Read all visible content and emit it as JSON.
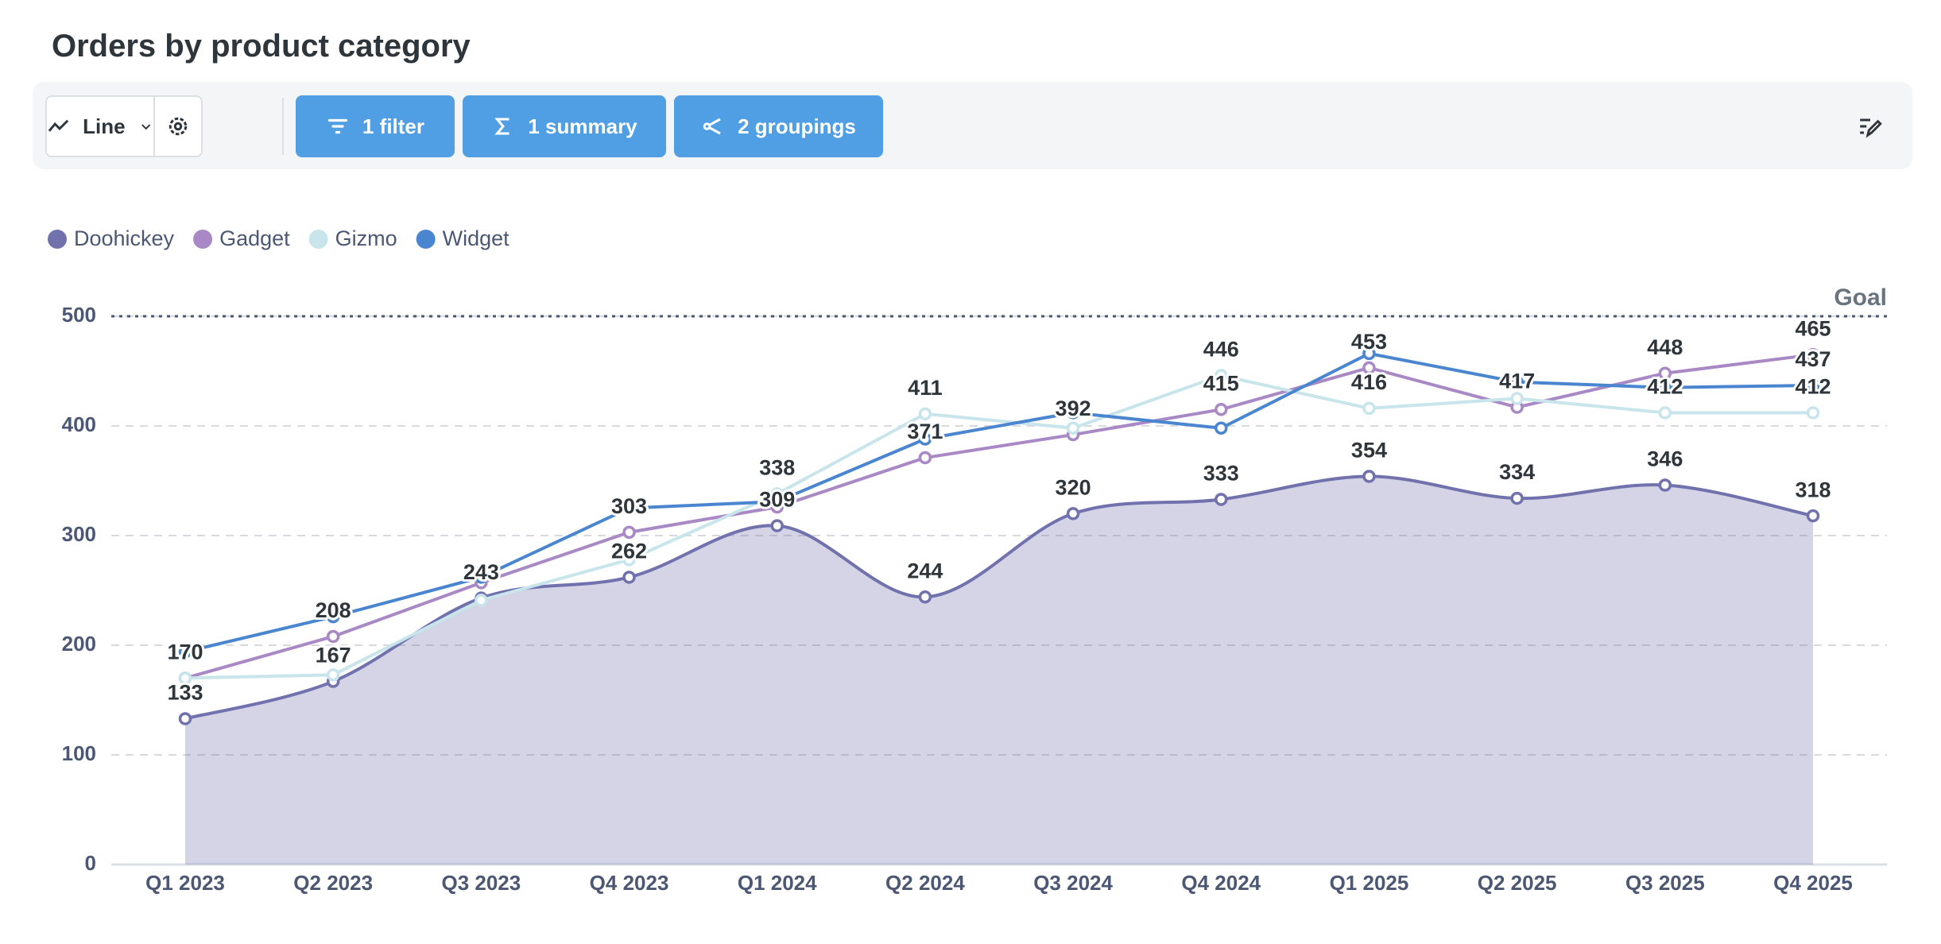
{
  "toolbar": {
    "display": "Line",
    "filter": "1 filter",
    "summary": "1 summary",
    "groupings": "2 groupings"
  },
  "chart_data": {
    "type": "line",
    "title": "Orders by product category",
    "categories": [
      "Q1 2023",
      "Q2 2023",
      "Q3 2023",
      "Q4 2023",
      "Q1 2024",
      "Q2 2024",
      "Q3 2024",
      "Q4 2024",
      "Q1 2025",
      "Q2 2025",
      "Q3 2025",
      "Q4 2025"
    ],
    "series": [
      {
        "name": "Doohickey",
        "color": "#7172ad",
        "area": true,
        "smooth": true,
        "values": [
          133,
          167,
          243,
          262,
          309,
          244,
          320,
          333,
          354,
          334,
          346,
          318
        ],
        "value_labels": [
          "133",
          "167",
          "243",
          "262",
          "309",
          "244",
          "320",
          "333",
          "354",
          "334",
          "346",
          "318"
        ]
      },
      {
        "name": "Gadget",
        "color": "#a989c5",
        "values": [
          170,
          208,
          257,
          303,
          326,
          371,
          392,
          415,
          453,
          417,
          448,
          465
        ],
        "value_labels": [
          "170",
          "208",
          null,
          "303",
          null,
          "371",
          "392",
          "415",
          "453",
          "417",
          "448",
          "465"
        ]
      },
      {
        "name": "Gizmo",
        "color": "#c7e5ea",
        "values": [
          170,
          173,
          241,
          278,
          338,
          411,
          398,
          446,
          416,
          425,
          412,
          412
        ],
        "value_labels": [
          null,
          null,
          null,
          null,
          "338",
          "411",
          null,
          "446",
          "416",
          null,
          "412",
          "412"
        ]
      },
      {
        "name": "Widget",
        "color": "#4a86cf",
        "values": [
          194,
          226,
          262,
          325,
          331,
          388,
          412,
          398,
          466,
          440,
          435,
          437
        ],
        "value_labels": [
          null,
          null,
          null,
          null,
          null,
          null,
          null,
          null,
          null,
          null,
          null,
          "437"
        ]
      }
    ],
    "ylim": [
      0,
      500
    ],
    "yticks": [
      0,
      100,
      200,
      300,
      400,
      500
    ],
    "grid": true,
    "goal": {
      "value": 500,
      "label": "Goal"
    },
    "legend": "top-left"
  }
}
